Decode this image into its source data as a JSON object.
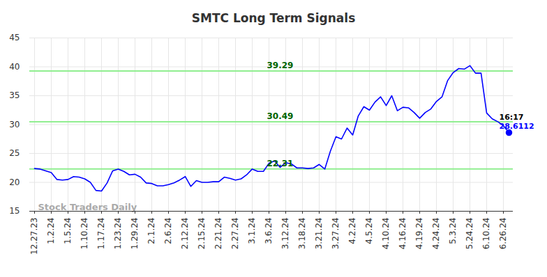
{
  "chart_data": {
    "type": "line",
    "title": "SMTC Long Term Signals",
    "categories": [
      "12.27.23",
      null,
      null,
      "1.2.24",
      null,
      null,
      "1.5.24",
      null,
      null,
      "1.10.24",
      null,
      null,
      "1.17.24",
      null,
      null,
      "1.23.24",
      null,
      null,
      "1.29.24",
      null,
      null,
      "2.1.24",
      null,
      null,
      "2.6.24",
      null,
      null,
      "2.12.24",
      null,
      null,
      "2.15.24",
      null,
      null,
      "2.21.24",
      null,
      null,
      "2.27.24",
      null,
      null,
      "3.1.24",
      null,
      null,
      "3.6.24",
      null,
      null,
      "3.12.24",
      null,
      null,
      "3.18.24",
      null,
      null,
      "3.21.24",
      null,
      null,
      "3.27.24",
      null,
      null,
      "4.2.24",
      null,
      null,
      "4.5.24",
      null,
      null,
      "4.10.24",
      null,
      null,
      "4.16.24",
      null,
      null,
      "4.19.24",
      null,
      null,
      "4.24.24",
      null,
      null,
      "5.3.24",
      null,
      null,
      "5.24.24",
      null,
      null,
      "6.10.24",
      null,
      null,
      "6.26.24",
      null
    ],
    "values": [
      22.4,
      22.3,
      22.0,
      21.7,
      20.5,
      20.4,
      20.5,
      21.0,
      20.9,
      20.6,
      20.0,
      18.6,
      18.5,
      19.9,
      22.0,
      22.3,
      21.9,
      21.3,
      21.4,
      20.9,
      19.9,
      19.8,
      19.4,
      19.4,
      19.6,
      19.9,
      20.4,
      21.0,
      19.3,
      20.3,
      20.0,
      20.0,
      20.1,
      20.1,
      20.9,
      20.7,
      20.4,
      20.6,
      21.3,
      22.3,
      21.9,
      21.9,
      23.3,
      23.7,
      22.6,
      23.4,
      23.2,
      22.5,
      22.5,
      22.4,
      22.5,
      23.1,
      22.3,
      25.4,
      27.9,
      27.5,
      29.4,
      28.2,
      31.5,
      33.1,
      32.5,
      33.9,
      34.8,
      33.3,
      35.0,
      32.4,
      33.0,
      32.9,
      32.1,
      31.1,
      32.1,
      32.7,
      34.0,
      34.8,
      37.6,
      39.0,
      39.7,
      39.6,
      40.2,
      38.9,
      38.9,
      32.0,
      31.0,
      30.5,
      29.8,
      28.6112
    ],
    "color": "#0000ff",
    "ylim": [
      15,
      45
    ],
    "yticks": [
      15,
      20,
      25,
      30,
      35,
      40,
      45
    ],
    "grid": true,
    "reference_lines": [
      39.29,
      30.49,
      22.31
    ],
    "annotation": "16:17",
    "watermark": "Stock Traders Daily"
  }
}
